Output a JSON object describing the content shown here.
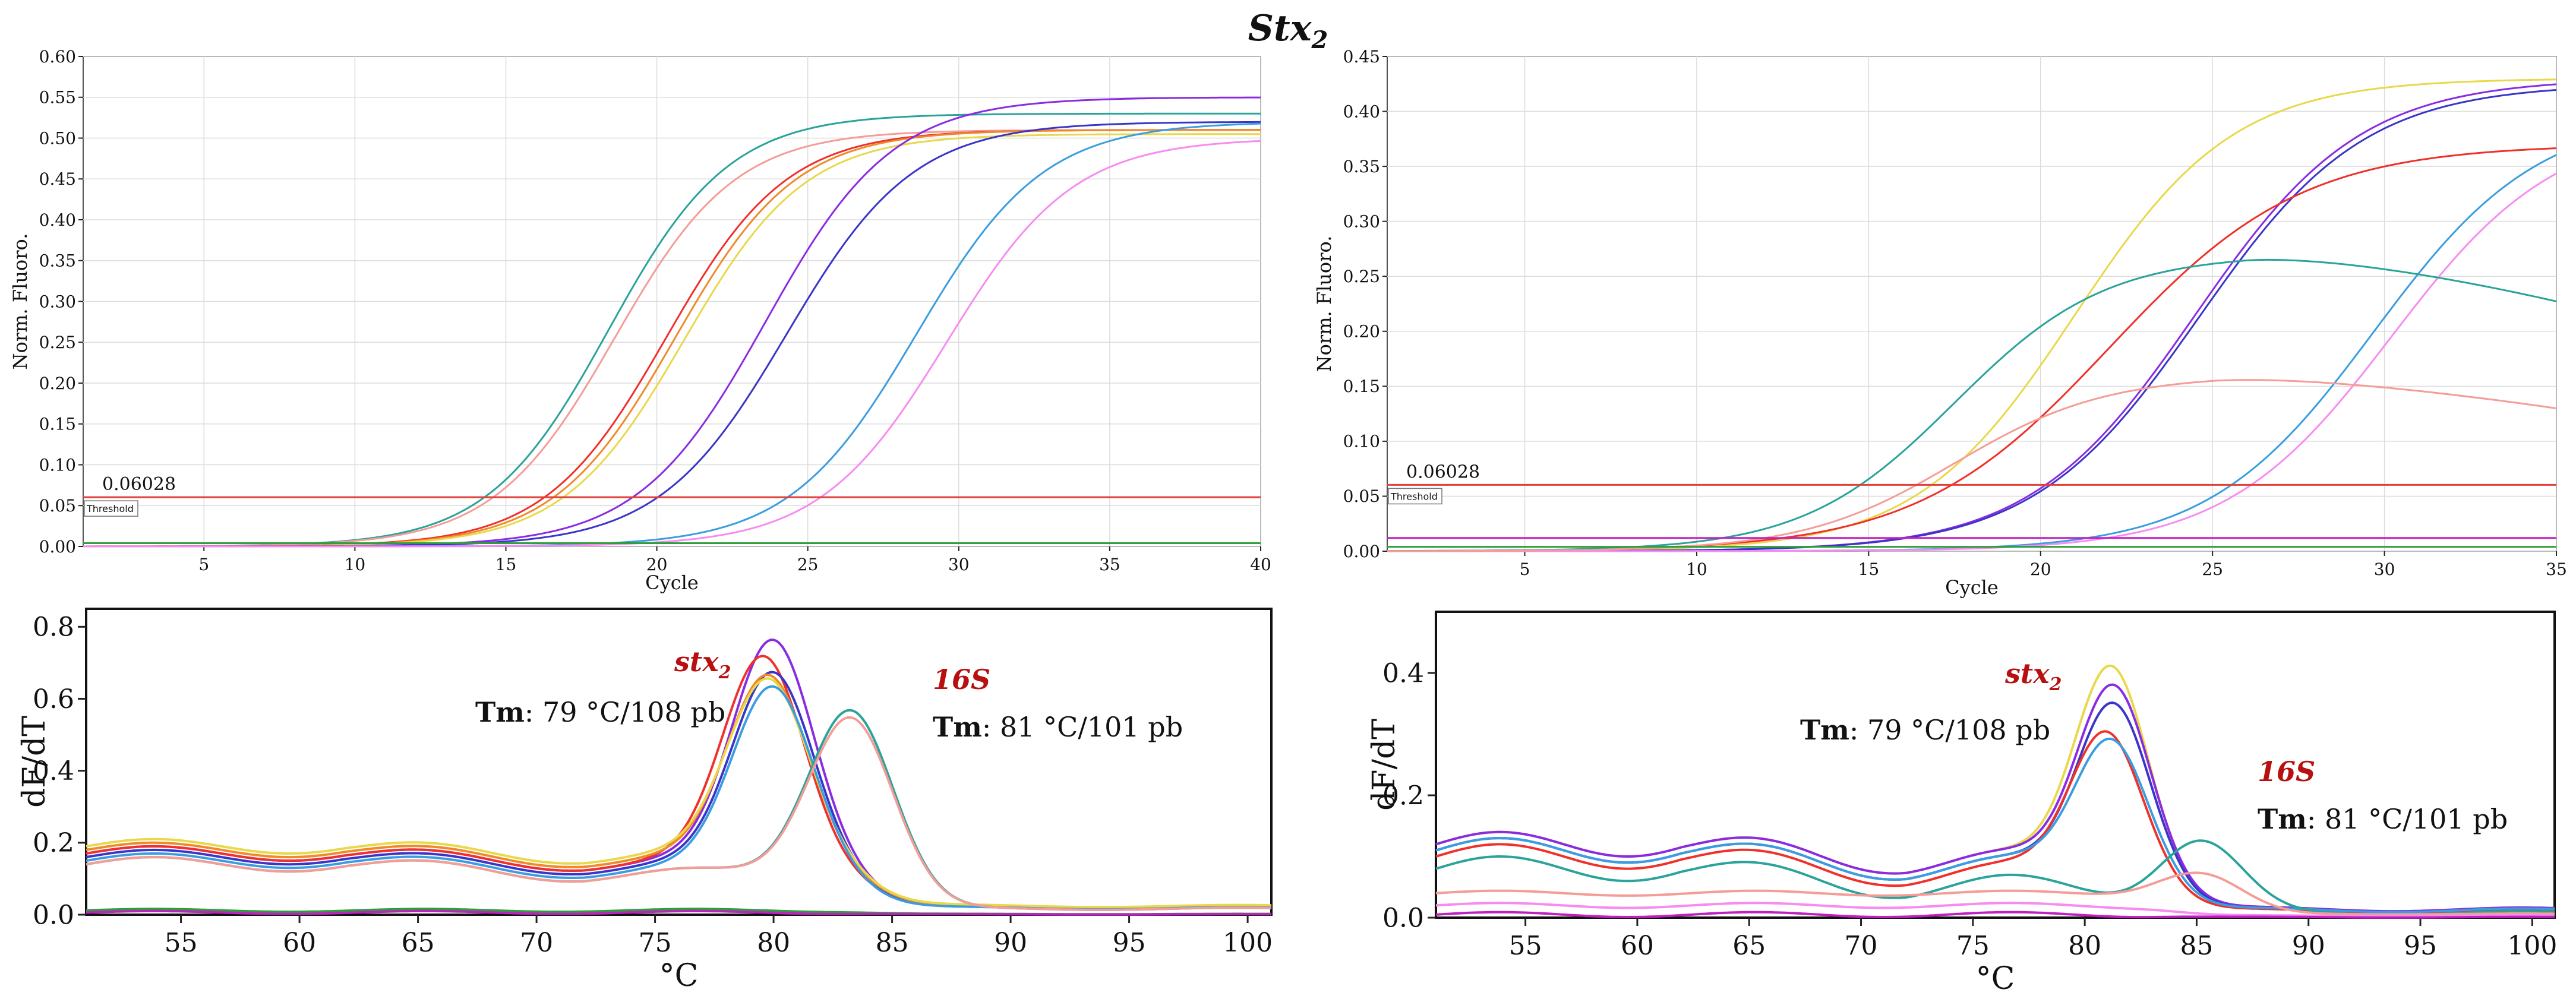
{
  "figure": {
    "title": "Stx",
    "title_sub": "2"
  },
  "colors": {
    "teal": "#2aa39a",
    "salmon": "#f59c97",
    "red": "#f0302a",
    "orange": "#f08a28",
    "yellow": "#e8d84a",
    "purple": "#8a2be2",
    "navy": "#3a35c8",
    "blue": "#3a9de0",
    "pink": "#f78cf0",
    "green": "#2e9e3a",
    "magenta": "#c020c0",
    "threshold": "#e0403a",
    "annot": "#b81010"
  },
  "chart_data": [
    {
      "id": "amp-left",
      "type": "line",
      "xlabel": "Cycle",
      "ylabel": "Norm. Fluoro.",
      "xlim": [
        1,
        40
      ],
      "ylim": [
        0,
        0.6
      ],
      "xticks": [
        5,
        10,
        15,
        20,
        25,
        30,
        35,
        40
      ],
      "yticks": [
        "0.00",
        "0.05",
        "0.10",
        "0.15",
        "0.20",
        "0.25",
        "0.30",
        "0.35",
        "0.40",
        "0.45",
        "0.50",
        "0.55",
        "0.60"
      ],
      "threshold": {
        "value": 0.06028,
        "label": "0.06028",
        "tag": "Threshold"
      },
      "series": [
        {
          "name": "teal",
          "color": "teal",
          "model": "sig",
          "top": 0.53,
          "mid": 18.4,
          "slope": 2.0
        },
        {
          "name": "salmon",
          "color": "salmon",
          "model": "sig",
          "top": 0.51,
          "mid": 18.6,
          "slope": 2.0
        },
        {
          "name": "red",
          "color": "red",
          "model": "sig",
          "top": 0.51,
          "mid": 20.3,
          "slope": 2.0
        },
        {
          "name": "orange",
          "color": "orange",
          "model": "sig",
          "top": 0.51,
          "mid": 20.6,
          "slope": 2.0
        },
        {
          "name": "yellow",
          "color": "yellow",
          "model": "sig",
          "top": 0.505,
          "mid": 20.9,
          "slope": 2.0
        },
        {
          "name": "purple",
          "color": "purple",
          "model": "sig",
          "top": 0.55,
          "mid": 23.6,
          "slope": 2.1
        },
        {
          "name": "navy",
          "color": "navy",
          "model": "sig",
          "top": 0.52,
          "mid": 24.3,
          "slope": 2.1
        },
        {
          "name": "blue",
          "color": "blue",
          "model": "sig",
          "top": 0.52,
          "mid": 28.6,
          "slope": 2.1
        },
        {
          "name": "pink",
          "color": "pink",
          "model": "sig",
          "top": 0.5,
          "mid": 29.6,
          "slope": 2.1
        },
        {
          "name": "green",
          "color": "green",
          "model": "flat",
          "value": 0.004
        }
      ]
    },
    {
      "id": "amp-right",
      "type": "line",
      "xlabel": "Cycle",
      "ylabel": "Norm. Fluoro.",
      "xlim": [
        1,
        35
      ],
      "ylim": [
        0,
        0.45
      ],
      "xticks": [
        5,
        10,
        15,
        20,
        25,
        30,
        35
      ],
      "yticks": [
        "0.00",
        "0.05",
        "0.10",
        "0.15",
        "0.20",
        "0.25",
        "0.30",
        "0.35",
        "0.40",
        "0.45"
      ],
      "threshold": {
        "value": 0.06028,
        "label": "0.06028",
        "tag": "Threshold"
      },
      "series": [
        {
          "name": "yellow",
          "color": "yellow",
          "model": "sig",
          "top": 0.43,
          "mid": 21.0,
          "slope": 2.3
        },
        {
          "name": "purple",
          "color": "purple",
          "model": "sig",
          "top": 0.43,
          "mid": 24.5,
          "slope": 2.4
        },
        {
          "name": "navy",
          "color": "navy",
          "model": "sig",
          "top": 0.425,
          "mid": 24.6,
          "slope": 2.4
        },
        {
          "name": "red",
          "color": "red",
          "model": "sig",
          "top": 0.37,
          "mid": 22.0,
          "slope": 2.8
        },
        {
          "name": "blue",
          "color": "blue",
          "model": "sig",
          "top": 0.4,
          "mid": 29.7,
          "slope": 2.4
        },
        {
          "name": "pink",
          "color": "pink",
          "model": "sig",
          "top": 0.39,
          "mid": 30.2,
          "slope": 2.4
        },
        {
          "name": "teal",
          "color": "teal",
          "model": "peak",
          "top": 0.27,
          "mid": 17.5,
          "slope": 2.2,
          "decay": 0.05,
          "dstart": 26
        },
        {
          "name": "salmon",
          "color": "salmon",
          "model": "peak",
          "top": 0.16,
          "mid": 17.5,
          "slope": 2.2,
          "decay": 0.03,
          "dstart": 25
        },
        {
          "name": "magenta",
          "color": "magenta",
          "model": "flat",
          "value": 0.012
        },
        {
          "name": "green",
          "color": "green",
          "model": "flat",
          "value": 0.004
        }
      ]
    },
    {
      "id": "melt-left",
      "type": "line",
      "xlabel": "°C",
      "ylabel": "dF/dT",
      "xlim": [
        51,
        101
      ],
      "ylim": [
        0,
        0.85
      ],
      "xticks": [
        55,
        60,
        65,
        70,
        75,
        80,
        85,
        90,
        95,
        100
      ],
      "yticks": [
        "0.0",
        "0.2",
        "0.4",
        "0.6",
        "0.8"
      ],
      "annotations": [
        {
          "gene": "stx",
          "sub": "2",
          "tm_key": "Tm",
          "tm_val": ": 79 °C/108 pb"
        },
        {
          "gene": "16S",
          "sub": "",
          "tm_key": "Tm",
          "tm_val": ": 81 °C/101 pb"
        }
      ],
      "series": [
        {
          "name": "purple",
          "color": "purple",
          "base": 0.17,
          "peaks": [
            [
              80.0,
              0.63,
              1.7
            ]
          ]
        },
        {
          "name": "red",
          "color": "red",
          "base": 0.17,
          "peaks": [
            [
              79.6,
              0.58,
              1.7
            ]
          ]
        },
        {
          "name": "navy",
          "color": "navy",
          "base": 0.16,
          "peaks": [
            [
              80.0,
              0.55,
              1.7
            ]
          ]
        },
        {
          "name": "orange",
          "color": "orange",
          "base": 0.18,
          "peaks": [
            [
              79.8,
              0.52,
              1.7
            ]
          ]
        },
        {
          "name": "yellow",
          "color": "yellow",
          "base": 0.19,
          "peaks": [
            [
              79.8,
              0.5,
              1.7
            ]
          ]
        },
        {
          "name": "blue",
          "color": "blue",
          "base": 0.15,
          "peaks": [
            [
              80.0,
              0.52,
              1.7
            ]
          ]
        },
        {
          "name": "teal",
          "color": "teal",
          "base": 0.14,
          "peaks": [
            [
              83.3,
              0.5,
              1.8
            ]
          ]
        },
        {
          "name": "salmon",
          "color": "salmon",
          "base": 0.14,
          "peaks": [
            [
              83.3,
              0.48,
              1.8
            ]
          ]
        },
        {
          "name": "green",
          "color": "green",
          "base": 0.012,
          "peaks": []
        },
        {
          "name": "magenta",
          "color": "magenta",
          "base": 0.006,
          "peaks": []
        }
      ]
    },
    {
      "id": "melt-right",
      "type": "line",
      "xlabel": "°C",
      "ylabel": "dF/dT",
      "xlim": [
        51,
        101
      ],
      "ylim": [
        0,
        0.5
      ],
      "xticks": [
        55,
        60,
        65,
        70,
        75,
        80,
        85,
        90,
        95,
        100
      ],
      "yticks": [
        "0.0",
        "0.2",
        "0.4"
      ],
      "annotations": [
        {
          "gene": "stx",
          "sub": "2",
          "tm_key": "Tm",
          "tm_val": ": 79 °C/108 pb"
        },
        {
          "gene": "16S",
          "sub": "",
          "tm_key": "Tm",
          "tm_val": ": 81 °C/101 pb"
        }
      ],
      "series": [
        {
          "name": "yellow",
          "color": "yellow",
          "base": 0.12,
          "peaks": [
            [
              81.2,
              0.34,
              1.6
            ]
          ]
        },
        {
          "name": "purple",
          "color": "purple",
          "base": 0.12,
          "peaks": [
            [
              81.3,
              0.31,
              1.6
            ]
          ]
        },
        {
          "name": "navy",
          "color": "navy",
          "base": 0.11,
          "peaks": [
            [
              81.3,
              0.29,
              1.6
            ]
          ]
        },
        {
          "name": "red",
          "color": "red",
          "base": 0.1,
          "peaks": [
            [
              81.0,
              0.25,
              1.6
            ]
          ]
        },
        {
          "name": "blue",
          "color": "blue",
          "base": 0.11,
          "peaks": [
            [
              81.2,
              0.23,
              1.6
            ]
          ]
        },
        {
          "name": "teal",
          "color": "teal",
          "base": 0.08,
          "peaks": [
            [
              85.3,
              0.11,
              1.8
            ]
          ]
        },
        {
          "name": "salmon",
          "color": "salmon",
          "base": 0.04,
          "peaks": [
            [
              85.3,
              0.06,
              1.8
            ]
          ]
        },
        {
          "name": "pink",
          "color": "pink",
          "base": 0.02,
          "peaks": []
        },
        {
          "name": "magenta",
          "color": "magenta",
          "base": 0.005,
          "peaks": []
        }
      ]
    }
  ]
}
